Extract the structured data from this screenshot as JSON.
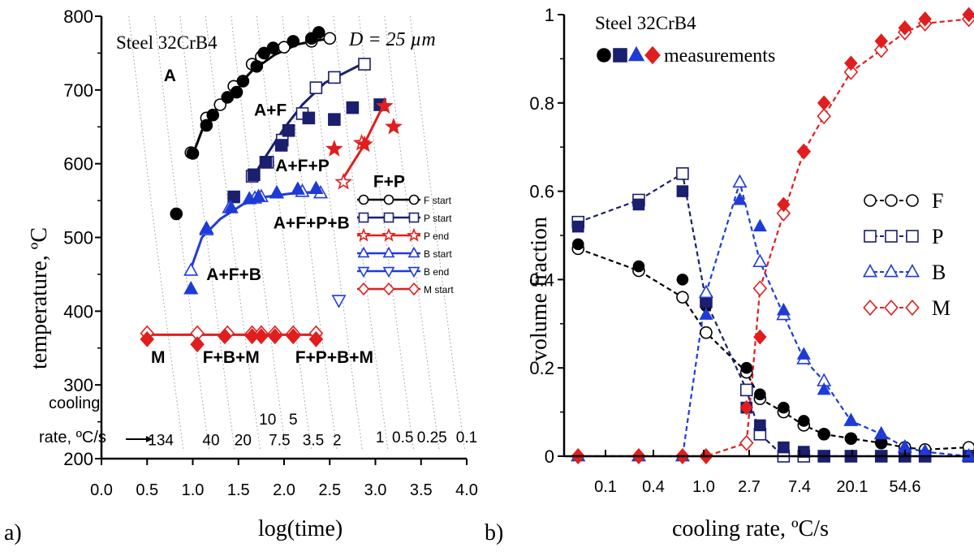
{
  "colors": {
    "black": "#000000",
    "navy": "#1a1f6e",
    "blue": "#1f3bd6",
    "red": "#e01e1e",
    "lightblue": "#2d46d9"
  },
  "chart_data": [
    {
      "panel_label": "a)",
      "type": "scatter",
      "title": "Steel 32CrB4",
      "annotation": "D = 25 µm",
      "xlabel": "log(time)",
      "ylabel": "temperature, ºC",
      "xlim": [
        0.0,
        4.0
      ],
      "ylim": [
        200,
        800
      ],
      "xticks": [
        "0.0",
        "0.5",
        "1.0",
        "1.5",
        "2.0",
        "2.5",
        "3.0",
        "3.5",
        "4.0"
      ],
      "yticks": [
        "200",
        "300",
        "400",
        "500",
        "600",
        "700",
        "800"
      ],
      "cooling_rate_label_1": "cooling",
      "cooling_rate_label_2": "rate, ºC/s",
      "cooling_rates": [
        {
          "label": "134",
          "x": 0.65,
          "y": 218
        },
        {
          "label": "40",
          "x": 1.2,
          "y": 218
        },
        {
          "label": "20",
          "x": 1.55,
          "y": 218
        },
        {
          "label": "10",
          "x": 1.82,
          "y": 246
        },
        {
          "label": "5",
          "x": 2.1,
          "y": 246
        },
        {
          "label": "7.5",
          "x": 1.95,
          "y": 218
        },
        {
          "label": "3.5",
          "x": 2.32,
          "y": 218
        },
        {
          "label": "2",
          "x": 2.58,
          "y": 218
        },
        {
          "label": "1",
          "x": 3.05,
          "y": 222
        },
        {
          "label": "0.5",
          "x": 3.3,
          "y": 222
        },
        {
          "label": "0.25",
          "x": 3.62,
          "y": 222
        },
        {
          "label": "0.1",
          "x": 4.0,
          "y": 222
        }
      ],
      "regions": [
        {
          "label": "A",
          "x": 0.75,
          "y": 712
        },
        {
          "label": "A+F",
          "x": 1.85,
          "y": 665
        },
        {
          "label": "A+F+P",
          "x": 2.2,
          "y": 590
        },
        {
          "label": "F+P",
          "x": 3.15,
          "y": 568
        },
        {
          "label": "A+F+P+B",
          "x": 2.3,
          "y": 512
        },
        {
          "label": "A+F+B",
          "x": 1.45,
          "y": 442
        },
        {
          "label": "M",
          "x": 0.62,
          "y": 330
        },
        {
          "label": "F+B+M",
          "x": 1.42,
          "y": 330
        },
        {
          "label": "F+P+B+M",
          "x": 2.55,
          "y": 330
        }
      ],
      "legend": [
        "F start",
        "P start",
        "P end",
        "B start",
        "B end",
        "M start"
      ],
      "series": [
        {
          "name": "F start",
          "color": "#000000",
          "marker": "circle",
          "curve": [
            [
              1.0,
              612
            ],
            [
              1.1,
              645
            ],
            [
              1.25,
              672
            ],
            [
              1.45,
              700
            ],
            [
              1.65,
              726
            ],
            [
              1.9,
              748
            ],
            [
              2.15,
              762
            ],
            [
              2.4,
              768
            ],
            [
              2.55,
              770
            ]
          ],
          "open": [
            [
              0.98,
              615
            ],
            [
              1.15,
              662
            ],
            [
              1.3,
              680
            ],
            [
              1.45,
              705
            ],
            [
              1.65,
              735
            ],
            [
              1.75,
              745
            ],
            [
              2.0,
              758
            ],
            [
              2.3,
              766
            ],
            [
              2.5,
              770
            ]
          ],
          "filled": [
            [
              0.82,
              532
            ],
            [
              1.0,
              614
            ],
            [
              1.15,
              652
            ],
            [
              1.22,
              666
            ],
            [
              1.38,
              690
            ],
            [
              1.48,
              697
            ],
            [
              1.55,
              712
            ],
            [
              1.7,
              732
            ],
            [
              1.78,
              750
            ],
            [
              1.88,
              757
            ],
            [
              2.1,
              766
            ],
            [
              2.3,
              770
            ],
            [
              2.38,
              778
            ]
          ]
        },
        {
          "name": "P start",
          "color": "#1a1f6e",
          "marker": "square",
          "curve": [
            [
              1.65,
              580
            ],
            [
              1.8,
              610
            ],
            [
              2.0,
              648
            ],
            [
              2.2,
              680
            ],
            [
              2.45,
              710
            ],
            [
              2.85,
              735
            ]
          ],
          "open": [
            [
              1.65,
              583
            ],
            [
              1.82,
              602
            ],
            [
              1.98,
              632
            ],
            [
              2.2,
              668
            ],
            [
              2.35,
              703
            ],
            [
              2.55,
              717
            ],
            [
              2.88,
              735
            ]
          ],
          "filled": [
            [
              1.45,
              555
            ],
            [
              1.67,
              585
            ],
            [
              1.8,
              602
            ],
            [
              1.97,
              625
            ],
            [
              2.05,
              645
            ],
            [
              2.27,
              662
            ],
            [
              2.55,
              660
            ],
            [
              2.75,
              676
            ],
            [
              3.05,
              680
            ]
          ]
        },
        {
          "name": "P end",
          "color": "#e01e1e",
          "marker": "star",
          "curve": [
            [
              2.62,
              575
            ],
            [
              2.85,
              620
            ],
            [
              3.05,
              670
            ],
            [
              3.1,
              680
            ]
          ],
          "open": [
            [
              2.65,
              575
            ],
            [
              2.85,
              628
            ]
          ],
          "filled": [
            [
              2.55,
              620
            ],
            [
              2.88,
              626
            ],
            [
              3.1,
              678
            ],
            [
              3.2,
              650
            ]
          ]
        },
        {
          "name": "B start",
          "color": "#1f3bd6",
          "marker": "triangle",
          "curve": [
            [
              0.98,
              458
            ],
            [
              1.1,
              500
            ],
            [
              1.3,
              525
            ],
            [
              1.55,
              545
            ],
            [
              1.8,
              555
            ],
            [
              2.1,
              560
            ],
            [
              2.4,
              562
            ]
          ],
          "open": [
            [
              0.98,
              455
            ],
            [
              1.15,
              510
            ],
            [
              1.4,
              540
            ],
            [
              1.68,
              553
            ],
            [
              1.75,
              555
            ],
            [
              1.92,
              560
            ],
            [
              2.2,
              562
            ],
            [
              2.4,
              560
            ]
          ],
          "filled": [
            [
              0.98,
              430
            ],
            [
              1.15,
              512
            ],
            [
              1.42,
              540
            ],
            [
              1.62,
              552
            ],
            [
              1.72,
              555
            ],
            [
              1.92,
              560
            ],
            [
              2.15,
              565
            ],
            [
              2.35,
              566
            ]
          ]
        },
        {
          "name": "B end",
          "color": "#1f3bd6",
          "marker": "triangle-down",
          "curve": [],
          "open": [
            [
              2.6,
              415
            ]
          ],
          "filled": []
        },
        {
          "name": "M start",
          "color": "#e01e1e",
          "marker": "diamond",
          "curve": [
            [
              0.5,
              368
            ],
            [
              2.38,
              368
            ]
          ],
          "open": [
            [
              0.5,
              370
            ],
            [
              1.05,
              370
            ],
            [
              1.38,
              370
            ],
            [
              1.65,
              370
            ],
            [
              1.75,
              370
            ],
            [
              1.9,
              370
            ],
            [
              2.1,
              370
            ],
            [
              2.35,
              370
            ]
          ],
          "filled": [
            [
              0.5,
              362
            ],
            [
              1.05,
              355
            ],
            [
              1.35,
              366
            ],
            [
              1.65,
              366
            ],
            [
              1.75,
              366
            ],
            [
              1.9,
              366
            ],
            [
              2.1,
              366
            ],
            [
              2.35,
              362
            ]
          ]
        }
      ],
      "isolines_rates": [
        "134",
        "40",
        "20",
        "10",
        "7.5",
        "5",
        "3.5",
        "2",
        "1",
        "0.5",
        "0.25",
        "0.1"
      ]
    },
    {
      "panel_label": "b)",
      "type": "line",
      "title": "Steel 32CrB4",
      "measurements_label": "measurements",
      "xlabel": "cooling rate, ºC/s",
      "ylabel": "volume fraction",
      "ylim": [
        0,
        1
      ],
      "yticks": [
        "0",
        "0.2",
        "0.4",
        "0.6",
        "0.8",
        "1"
      ],
      "xticks": [
        "0.1",
        "0.4",
        "1.0",
        "2.7",
        "7.4",
        "20.1",
        "54.6"
      ],
      "x_positions": [
        0,
        1,
        2,
        3,
        4,
        5,
        6,
        7,
        8,
        9,
        10,
        11,
        12,
        13
      ],
      "legend": [
        "F",
        "P",
        "B",
        "M"
      ],
      "series": [
        {
          "name": "F",
          "color": "#000000",
          "marker": "circle",
          "x": [
            -0.5,
            1.3,
            2.6,
            3.3,
            4.5,
            4.9,
            5.6,
            6.2,
            6.8,
            7.6,
            8.5,
            9.2,
            9.8,
            11.1
          ],
          "sim": [
            0.47,
            0.42,
            0.36,
            0.28,
            0.19,
            0.13,
            0.1,
            0.07,
            0.05,
            0.04,
            0.03,
            0.02,
            0.015,
            0.02
          ],
          "meas": [
            0.48,
            0.43,
            0.4,
            0.34,
            0.2,
            0.14,
            0.11,
            0.08,
            0.05,
            0.04,
            0.03,
            0.01,
            0.0,
            0.0
          ]
        },
        {
          "name": "P",
          "color": "#1a1f6e",
          "marker": "square",
          "x": [
            -0.5,
            1.3,
            2.6,
            3.3,
            4.5,
            4.9,
            5.6,
            6.2,
            6.8,
            7.6,
            8.5,
            9.2,
            9.8,
            11.1
          ],
          "sim": [
            0.53,
            0.58,
            0.64,
            0.35,
            0.15,
            0.05,
            0.0,
            0.0,
            0.0,
            0.0,
            0.0,
            0.0,
            0.0,
            0.0
          ],
          "meas": [
            0.52,
            0.57,
            0.6,
            0.35,
            0.11,
            0.07,
            0.02,
            0.01,
            0.0,
            0.0,
            0.0,
            0.0,
            0.0,
            0.0
          ]
        },
        {
          "name": "B",
          "color": "#1f3bd6",
          "marker": "triangle",
          "x": [
            -0.5,
            1.3,
            2.6,
            3.3,
            4.3,
            4.9,
            5.6,
            6.2,
            6.8,
            7.6,
            8.5,
            9.2,
            9.8,
            11.1
          ],
          "sim": [
            0.0,
            0.0,
            0.0,
            0.37,
            0.62,
            0.44,
            0.32,
            0.22,
            0.17,
            0.08,
            0.05,
            0.02,
            0.01,
            0.0
          ],
          "meas": [
            0.0,
            0.0,
            0.0,
            0.32,
            0.58,
            0.52,
            0.33,
            0.23,
            0.15,
            0.08,
            0.05,
            0.02,
            0.01,
            0.0
          ]
        },
        {
          "name": "M",
          "color": "#e01e1e",
          "marker": "diamond",
          "x": [
            -0.5,
            1.3,
            2.6,
            3.3,
            4.5,
            4.9,
            5.6,
            6.2,
            6.8,
            7.6,
            8.5,
            9.2,
            9.8,
            11.1
          ],
          "sim": [
            0.0,
            0.0,
            0.0,
            0.0,
            0.03,
            0.38,
            0.55,
            0.69,
            0.77,
            0.87,
            0.92,
            0.96,
            0.98,
            0.99
          ],
          "meas": [
            0.0,
            0.0,
            0.0,
            0.0,
            0.11,
            0.27,
            0.57,
            0.69,
            0.8,
            0.89,
            0.94,
            0.97,
            0.99,
            1.0
          ]
        }
      ]
    }
  ]
}
